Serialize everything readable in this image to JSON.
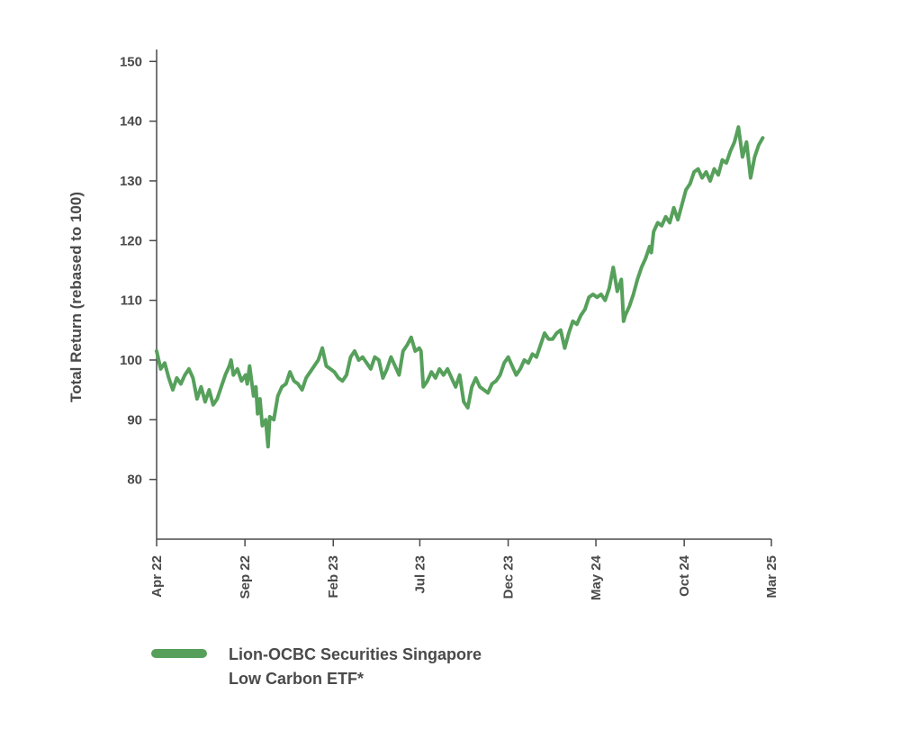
{
  "chart_data": {
    "type": "line",
    "title": "",
    "xlabel": "",
    "ylabel": "Total Return (rebased to 100)",
    "ylim": [
      70,
      152
    ],
    "yticks": [
      80,
      90,
      100,
      110,
      120,
      130,
      140,
      150
    ],
    "xlim": [
      "2022-04-01",
      "2025-03-01"
    ],
    "xticks": [
      {
        "date": "2022-04-01",
        "label": "Apr 22"
      },
      {
        "date": "2022-09-01",
        "label": "Sep 22"
      },
      {
        "date": "2023-02-01",
        "label": "Feb 23"
      },
      {
        "date": "2023-07-01",
        "label": "Jul 23"
      },
      {
        "date": "2023-12-01",
        "label": "Dec 23"
      },
      {
        "date": "2024-05-01",
        "label": "May 24"
      },
      {
        "date": "2024-10-01",
        "label": "Oct 24"
      },
      {
        "date": "2025-03-01",
        "label": "Mar 25"
      }
    ],
    "grid": false,
    "legend_position": "bottom-left",
    "series": [
      {
        "name": "Lion-OCBC Securities Singapore Low Carbon ETF*",
        "color": "#56a05b",
        "points": [
          [
            "2022-04-01",
            101.5
          ],
          [
            "2022-04-08",
            98.5
          ],
          [
            "2022-04-15",
            99.5
          ],
          [
            "2022-04-22",
            97.0
          ],
          [
            "2022-04-29",
            95.0
          ],
          [
            "2022-05-06",
            97.0
          ],
          [
            "2022-05-13",
            96.0
          ],
          [
            "2022-05-20",
            97.5
          ],
          [
            "2022-05-27",
            98.5
          ],
          [
            "2022-06-03",
            97.0
          ],
          [
            "2022-06-10",
            93.5
          ],
          [
            "2022-06-17",
            95.5
          ],
          [
            "2022-06-24",
            93.0
          ],
          [
            "2022-07-01",
            95.0
          ],
          [
            "2022-07-08",
            92.5
          ],
          [
            "2022-07-15",
            93.5
          ],
          [
            "2022-07-22",
            95.5
          ],
          [
            "2022-07-29",
            97.5
          ],
          [
            "2022-08-05",
            99.0
          ],
          [
            "2022-08-08",
            100.0
          ],
          [
            "2022-08-12",
            97.5
          ],
          [
            "2022-08-19",
            98.5
          ],
          [
            "2022-08-26",
            96.5
          ],
          [
            "2022-09-02",
            97.5
          ],
          [
            "2022-09-05",
            96.0
          ],
          [
            "2022-09-09",
            99.0
          ],
          [
            "2022-09-16",
            94.0
          ],
          [
            "2022-09-20",
            95.5
          ],
          [
            "2022-09-23",
            91.0
          ],
          [
            "2022-09-27",
            93.5
          ],
          [
            "2022-10-01",
            89.0
          ],
          [
            "2022-10-07",
            90.0
          ],
          [
            "2022-10-11",
            85.5
          ],
          [
            "2022-10-14",
            90.5
          ],
          [
            "2022-10-21",
            90.0
          ],
          [
            "2022-10-28",
            94.0
          ],
          [
            "2022-11-04",
            95.5
          ],
          [
            "2022-11-11",
            96.0
          ],
          [
            "2022-11-18",
            98.0
          ],
          [
            "2022-11-25",
            96.5
          ],
          [
            "2022-12-02",
            96.0
          ],
          [
            "2022-12-09",
            95.0
          ],
          [
            "2022-12-16",
            97.0
          ],
          [
            "2022-12-23",
            98.0
          ],
          [
            "2022-12-30",
            99.0
          ],
          [
            "2023-01-06",
            100.0
          ],
          [
            "2023-01-13",
            102.0
          ],
          [
            "2023-01-20",
            99.0
          ],
          [
            "2023-01-27",
            98.5
          ],
          [
            "2023-02-03",
            98.0
          ],
          [
            "2023-02-10",
            97.0
          ],
          [
            "2023-02-17",
            96.5
          ],
          [
            "2023-02-24",
            97.5
          ],
          [
            "2023-03-03",
            100.5
          ],
          [
            "2023-03-10",
            101.5
          ],
          [
            "2023-03-17",
            100.0
          ],
          [
            "2023-03-24",
            100.5
          ],
          [
            "2023-03-31",
            99.5
          ],
          [
            "2023-04-07",
            98.5
          ],
          [
            "2023-04-14",
            100.5
          ],
          [
            "2023-04-21",
            100.0
          ],
          [
            "2023-04-28",
            97.0
          ],
          [
            "2023-05-05",
            98.5
          ],
          [
            "2023-05-12",
            100.5
          ],
          [
            "2023-05-19",
            99.0
          ],
          [
            "2023-05-26",
            97.5
          ],
          [
            "2023-06-02",
            101.5
          ],
          [
            "2023-06-09",
            102.5
          ],
          [
            "2023-06-16",
            103.8
          ],
          [
            "2023-06-23",
            101.5
          ],
          [
            "2023-06-30",
            102.0
          ],
          [
            "2023-07-03",
            101.5
          ],
          [
            "2023-07-07",
            95.5
          ],
          [
            "2023-07-14",
            96.5
          ],
          [
            "2023-07-21",
            98.0
          ],
          [
            "2023-07-28",
            97.0
          ],
          [
            "2023-08-04",
            98.5
          ],
          [
            "2023-08-11",
            97.5
          ],
          [
            "2023-08-18",
            98.5
          ],
          [
            "2023-08-25",
            97.0
          ],
          [
            "2023-09-01",
            95.5
          ],
          [
            "2023-09-08",
            97.5
          ],
          [
            "2023-09-15",
            93.0
          ],
          [
            "2023-09-22",
            92.0
          ],
          [
            "2023-09-29",
            95.5
          ],
          [
            "2023-10-06",
            97.0
          ],
          [
            "2023-10-13",
            95.5
          ],
          [
            "2023-10-20",
            95.0
          ],
          [
            "2023-10-27",
            94.5
          ],
          [
            "2023-11-03",
            96.0
          ],
          [
            "2023-11-10",
            96.5
          ],
          [
            "2023-11-17",
            97.5
          ],
          [
            "2023-11-24",
            99.5
          ],
          [
            "2023-12-01",
            100.5
          ],
          [
            "2023-12-08",
            99.0
          ],
          [
            "2023-12-15",
            97.5
          ],
          [
            "2023-12-22",
            98.5
          ],
          [
            "2023-12-29",
            100.0
          ],
          [
            "2024-01-05",
            99.5
          ],
          [
            "2024-01-12",
            101.0
          ],
          [
            "2024-01-19",
            100.5
          ],
          [
            "2024-01-26",
            102.5
          ],
          [
            "2024-02-02",
            104.5
          ],
          [
            "2024-02-09",
            103.5
          ],
          [
            "2024-02-16",
            103.5
          ],
          [
            "2024-02-23",
            104.5
          ],
          [
            "2024-03-01",
            105.0
          ],
          [
            "2024-03-08",
            102.0
          ],
          [
            "2024-03-15",
            104.5
          ],
          [
            "2024-03-22",
            106.5
          ],
          [
            "2024-03-29",
            106.0
          ],
          [
            "2024-04-05",
            107.5
          ],
          [
            "2024-04-12",
            108.5
          ],
          [
            "2024-04-19",
            110.5
          ],
          [
            "2024-04-26",
            111.0
          ],
          [
            "2024-05-03",
            110.5
          ],
          [
            "2024-05-10",
            111.0
          ],
          [
            "2024-05-17",
            110.0
          ],
          [
            "2024-05-24",
            112.0
          ],
          [
            "2024-05-31",
            115.5
          ],
          [
            "2024-06-07",
            111.5
          ],
          [
            "2024-06-14",
            113.5
          ],
          [
            "2024-06-18",
            106.5
          ],
          [
            "2024-06-21",
            107.5
          ],
          [
            "2024-06-28",
            109.0
          ],
          [
            "2024-07-05",
            111.0
          ],
          [
            "2024-07-12",
            113.5
          ],
          [
            "2024-07-19",
            115.5
          ],
          [
            "2024-07-26",
            117.0
          ],
          [
            "2024-08-02",
            119.0
          ],
          [
            "2024-08-05",
            118.0
          ],
          [
            "2024-08-09",
            121.5
          ],
          [
            "2024-08-16",
            123.0
          ],
          [
            "2024-08-23",
            122.5
          ],
          [
            "2024-08-30",
            124.0
          ],
          [
            "2024-09-06",
            123.0
          ],
          [
            "2024-09-13",
            125.5
          ],
          [
            "2024-09-20",
            123.5
          ],
          [
            "2024-09-27",
            126.0
          ],
          [
            "2024-10-04",
            128.5
          ],
          [
            "2024-10-11",
            129.5
          ],
          [
            "2024-10-18",
            131.5
          ],
          [
            "2024-10-25",
            132.0
          ],
          [
            "2024-11-01",
            130.5
          ],
          [
            "2024-11-08",
            131.5
          ],
          [
            "2024-11-15",
            130.0
          ],
          [
            "2024-11-22",
            132.0
          ],
          [
            "2024-11-29",
            131.0
          ],
          [
            "2024-12-06",
            133.5
          ],
          [
            "2024-12-13",
            133.0
          ],
          [
            "2024-12-20",
            135.0
          ],
          [
            "2024-12-27",
            136.5
          ],
          [
            "2025-01-03",
            139.0
          ],
          [
            "2025-01-10",
            134.0
          ],
          [
            "2025-01-17",
            136.5
          ],
          [
            "2025-01-24",
            130.5
          ],
          [
            "2025-01-31",
            134.0
          ],
          [
            "2025-02-07",
            136.0
          ],
          [
            "2025-02-14",
            137.2
          ]
        ]
      }
    ]
  }
}
